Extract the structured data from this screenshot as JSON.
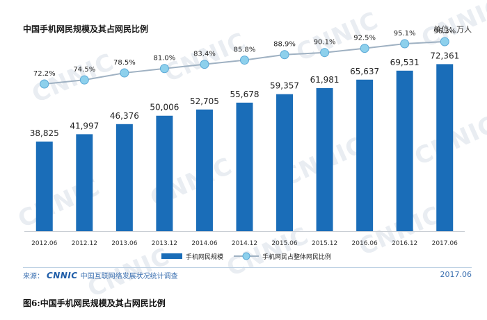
{
  "header": {
    "title": "中国手机网民规模及其占网民比例",
    "unit": "单位：万人"
  },
  "watermark_text": "CNNIC",
  "footer": {
    "source_prefix": "来源：",
    "source_logo": "CNNIC",
    "source_org": "中国互联网络发展状况统计调查",
    "date": "2017.06"
  },
  "caption": "图6:中国手机网民规模及其占网民比例",
  "colors": {
    "bar": "#1a6db8",
    "line": "#9fb1c2",
    "marker": "#8dd0ec",
    "marker_edge": "#5aa8d6"
  },
  "chart_data": {
    "type": "bar",
    "categories": [
      "2012.06",
      "2012.12",
      "2013.06",
      "2013.12",
      "2014.06",
      "2014.12",
      "2015.06",
      "2015.12",
      "2016.06",
      "2016.12",
      "2017.06"
    ],
    "series": [
      {
        "name": "手机网民规模",
        "type": "bar",
        "values": [
          38825,
          41997,
          46376,
          50006,
          52705,
          55678,
          59357,
          61981,
          65637,
          69531,
          72361
        ],
        "labels": [
          "38,825",
          "41,997",
          "46,376",
          "50,006",
          "52,705",
          "55,678",
          "59,357",
          "61,981",
          "65,637",
          "69,531",
          "72,361"
        ]
      },
      {
        "name": "手机网民占整体网民比例",
        "type": "line",
        "values": [
          72.2,
          74.5,
          78.5,
          81.0,
          83.4,
          85.8,
          88.9,
          90.1,
          92.5,
          95.1,
          96.3
        ],
        "labels": [
          "72.2%",
          "74.5%",
          "78.5%",
          "81.0%",
          "83.4%",
          "85.8%",
          "88.9%",
          "90.1%",
          "92.5%",
          "95.1%",
          "96.3%"
        ]
      }
    ],
    "ylim": [
      0,
      80000
    ],
    "legend": "bottom"
  }
}
